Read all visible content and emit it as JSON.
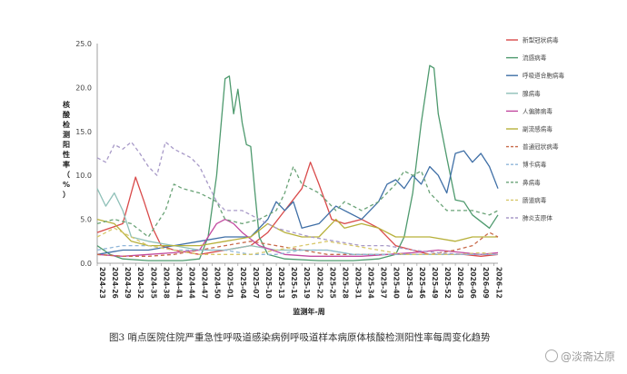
{
  "caption": "图3  哨点医院住院严重急性呼吸道感染病例呼吸道样本病原体核酸检测阳性率每周变化趋势",
  "watermark": "@淡斋达原",
  "chart_data": {
    "type": "line",
    "title": "",
    "xlabel": "监测年-周",
    "ylabel": "核酸检测阳性率（%）",
    "ylim": [
      0,
      25
    ],
    "yticks": [
      "0.0",
      "5.0",
      "10.0",
      "15.0",
      "20.0",
      "25.0"
    ],
    "yticks_num": [
      0,
      5,
      10,
      15,
      20,
      25
    ],
    "x_tick_labels": [
      "2024-23",
      "2024-26",
      "2024-29",
      "2024-32",
      "2024-35",
      "2024-38",
      "2024-41",
      "2024-44",
      "2024-47",
      "2024-50",
      "2025-01",
      "2025-04",
      "2025-07",
      "2025-10",
      "2025-13",
      "2025-16",
      "2025-19",
      "2025-22",
      "2025-25",
      "2025-28",
      "2025-31",
      "2025-34",
      "2025-37",
      "2025-40",
      "2025-43",
      "2025-46",
      "2025-49",
      "2025-52",
      "2026-03",
      "2026-06",
      "2026-09",
      "2026-12"
    ],
    "x_tick_weeks": [
      0,
      3,
      6,
      9,
      12,
      15,
      18,
      21,
      24,
      27,
      30,
      33,
      36,
      39,
      42,
      45,
      48,
      51,
      54,
      57,
      60,
      63,
      66,
      69,
      72,
      75,
      78,
      81,
      84,
      87,
      90,
      93
    ],
    "grid": false,
    "legend_position": "right",
    "series": [
      {
        "name": "新型冠状病毒",
        "color": "#d94a4a",
        "dash": "solid",
        "points": [
          [
            0,
            3.5
          ],
          [
            3,
            4
          ],
          [
            6,
            4.5
          ],
          [
            9,
            9.8
          ],
          [
            11,
            7
          ],
          [
            13,
            4
          ],
          [
            15,
            2
          ],
          [
            18,
            1.5
          ],
          [
            24,
            1
          ],
          [
            30,
            1.5
          ],
          [
            36,
            2
          ],
          [
            40,
            3.5
          ],
          [
            44,
            6
          ],
          [
            48,
            8.5
          ],
          [
            50,
            11.5
          ],
          [
            52,
            9
          ],
          [
            55,
            5
          ],
          [
            58,
            4.5
          ],
          [
            62,
            5
          ],
          [
            66,
            4
          ],
          [
            70,
            2
          ],
          [
            74,
            1.5
          ],
          [
            78,
            1
          ],
          [
            82,
            1
          ],
          [
            86,
            1
          ],
          [
            90,
            0.8
          ],
          [
            94,
            1
          ]
        ]
      },
      {
        "name": "流感病毒",
        "color": "#4e9a6e",
        "dash": "solid",
        "points": [
          [
            0,
            2
          ],
          [
            3,
            1
          ],
          [
            6,
            0.5
          ],
          [
            12,
            0.3
          ],
          [
            20,
            0.3
          ],
          [
            24,
            0.5
          ],
          [
            26,
            3
          ],
          [
            28,
            10
          ],
          [
            30,
            21
          ],
          [
            31,
            21.3
          ],
          [
            32,
            17
          ],
          [
            33,
            19.8
          ],
          [
            34,
            16
          ],
          [
            35,
            13.5
          ],
          [
            36,
            13.3
          ],
          [
            37,
            8
          ],
          [
            38,
            3
          ],
          [
            40,
            1
          ],
          [
            44,
            0.5
          ],
          [
            52,
            0.3
          ],
          [
            60,
            0.3
          ],
          [
            66,
            0.5
          ],
          [
            70,
            1
          ],
          [
            72,
            3
          ],
          [
            74,
            8
          ],
          [
            76,
            16
          ],
          [
            78,
            22.5
          ],
          [
            79,
            22.2
          ],
          [
            80,
            17
          ],
          [
            82,
            12
          ],
          [
            84,
            7.2
          ],
          [
            86,
            7
          ],
          [
            88,
            5.5
          ],
          [
            92,
            4
          ],
          [
            94,
            5.5
          ]
        ]
      },
      {
        "name": "呼吸道合胞病毒",
        "color": "#3f6fa6",
        "dash": "solid",
        "points": [
          [
            0,
            1
          ],
          [
            6,
            1.5
          ],
          [
            12,
            1.5
          ],
          [
            18,
            2
          ],
          [
            24,
            2.5
          ],
          [
            30,
            3
          ],
          [
            36,
            3
          ],
          [
            40,
            5
          ],
          [
            42,
            7
          ],
          [
            44,
            6
          ],
          [
            46,
            7
          ],
          [
            48,
            4
          ],
          [
            52,
            4.5
          ],
          [
            56,
            6.5
          ],
          [
            58,
            6
          ],
          [
            62,
            5
          ],
          [
            66,
            7
          ],
          [
            68,
            9
          ],
          [
            70,
            9.5
          ],
          [
            72,
            8.5
          ],
          [
            74,
            10
          ],
          [
            76,
            9
          ],
          [
            78,
            11
          ],
          [
            80,
            10
          ],
          [
            82,
            8
          ],
          [
            84,
            12.5
          ],
          [
            86,
            12.8
          ],
          [
            88,
            11.5
          ],
          [
            90,
            12.5
          ],
          [
            92,
            11
          ],
          [
            94,
            8.5
          ]
        ]
      },
      {
        "name": "腺病毒",
        "color": "#8fc0b8",
        "dash": "solid",
        "points": [
          [
            0,
            8.5
          ],
          [
            2,
            6.5
          ],
          [
            4,
            8
          ],
          [
            6,
            6
          ],
          [
            8,
            3
          ],
          [
            12,
            2.5
          ],
          [
            18,
            2
          ],
          [
            24,
            1.5
          ],
          [
            30,
            1.5
          ],
          [
            36,
            2
          ],
          [
            42,
            1.5
          ],
          [
            48,
            1.5
          ],
          [
            54,
            1.5
          ],
          [
            60,
            1
          ],
          [
            66,
            1
          ],
          [
            72,
            1
          ],
          [
            78,
            1
          ],
          [
            84,
            1
          ],
          [
            90,
            1
          ],
          [
            94,
            1
          ]
        ]
      },
      {
        "name": "人偏肺病毒",
        "color": "#c24aa0",
        "dash": "solid",
        "points": [
          [
            0,
            1
          ],
          [
            6,
            0.8
          ],
          [
            12,
            1
          ],
          [
            18,
            1.2
          ],
          [
            24,
            1.5
          ],
          [
            26,
            3
          ],
          [
            28,
            4.5
          ],
          [
            30,
            5
          ],
          [
            32,
            4.5
          ],
          [
            34,
            3.5
          ],
          [
            38,
            2
          ],
          [
            44,
            1
          ],
          [
            50,
            0.8
          ],
          [
            56,
            0.8
          ],
          [
            62,
            0.8
          ],
          [
            68,
            1
          ],
          [
            74,
            1.2
          ],
          [
            80,
            1.5
          ],
          [
            86,
            1.2
          ],
          [
            90,
            1
          ],
          [
            94,
            1.2
          ]
        ]
      },
      {
        "name": "副流感病毒",
        "color": "#b7b03a",
        "dash": "solid",
        "points": [
          [
            0,
            5
          ],
          [
            4,
            4.5
          ],
          [
            8,
            2.5
          ],
          [
            12,
            2
          ],
          [
            18,
            2
          ],
          [
            24,
            2
          ],
          [
            30,
            2.5
          ],
          [
            36,
            3
          ],
          [
            40,
            4.5
          ],
          [
            44,
            3.5
          ],
          [
            48,
            3
          ],
          [
            52,
            3
          ],
          [
            56,
            5
          ],
          [
            58,
            4
          ],
          [
            62,
            4.5
          ],
          [
            66,
            4
          ],
          [
            70,
            3
          ],
          [
            74,
            3
          ],
          [
            78,
            3
          ],
          [
            84,
            2.5
          ],
          [
            88,
            3
          ],
          [
            92,
            3
          ],
          [
            94,
            3
          ]
        ]
      },
      {
        "name": "普通冠状病毒",
        "color": "#c86a4a",
        "dash": "dashed",
        "points": [
          [
            0,
            1
          ],
          [
            6,
            0.8
          ],
          [
            12,
            0.8
          ],
          [
            18,
            1
          ],
          [
            24,
            1.5
          ],
          [
            30,
            2
          ],
          [
            36,
            2.5
          ],
          [
            42,
            2
          ],
          [
            48,
            1.5
          ],
          [
            54,
            1
          ],
          [
            60,
            1
          ],
          [
            66,
            1
          ],
          [
            72,
            1
          ],
          [
            78,
            1
          ],
          [
            84,
            1.5
          ],
          [
            88,
            2
          ],
          [
            92,
            3.5
          ],
          [
            94,
            3
          ]
        ]
      },
      {
        "name": "博卡病毒",
        "color": "#8fb6d9",
        "dash": "dashed",
        "points": [
          [
            0,
            1.5
          ],
          [
            6,
            2
          ],
          [
            12,
            2
          ],
          [
            18,
            1.5
          ],
          [
            24,
            1.5
          ],
          [
            30,
            1.5
          ],
          [
            36,
            1
          ],
          [
            42,
            1
          ],
          [
            48,
            1.5
          ],
          [
            54,
            1.5
          ],
          [
            60,
            1
          ],
          [
            66,
            1
          ],
          [
            72,
            1
          ],
          [
            78,
            1
          ],
          [
            84,
            1
          ],
          [
            90,
            1
          ],
          [
            94,
            1
          ]
        ]
      },
      {
        "name": "鼻病毒",
        "color": "#6aa377",
        "dash": "dashed",
        "points": [
          [
            0,
            4.5
          ],
          [
            4,
            5
          ],
          [
            8,
            4.5
          ],
          [
            12,
            3
          ],
          [
            16,
            6
          ],
          [
            18,
            9
          ],
          [
            20,
            8.5
          ],
          [
            24,
            8
          ],
          [
            28,
            7
          ],
          [
            30,
            5
          ],
          [
            34,
            4.5
          ],
          [
            38,
            5
          ],
          [
            42,
            6
          ],
          [
            44,
            8
          ],
          [
            46,
            11
          ],
          [
            48,
            9
          ],
          [
            52,
            8
          ],
          [
            56,
            6
          ],
          [
            58,
            7
          ],
          [
            62,
            6
          ],
          [
            66,
            7
          ],
          [
            70,
            9
          ],
          [
            72,
            10.5
          ],
          [
            74,
            10
          ],
          [
            76,
            10.5
          ],
          [
            78,
            8
          ],
          [
            80,
            7
          ],
          [
            82,
            6
          ],
          [
            84,
            6
          ],
          [
            86,
            6
          ],
          [
            88,
            6
          ],
          [
            92,
            5.5
          ],
          [
            94,
            6
          ]
        ]
      },
      {
        "name": "肠道病毒",
        "color": "#d8c86a",
        "dash": "dashed",
        "points": [
          [
            0,
            3
          ],
          [
            4,
            4
          ],
          [
            8,
            3
          ],
          [
            12,
            2
          ],
          [
            18,
            1.5
          ],
          [
            24,
            1
          ],
          [
            30,
            1
          ],
          [
            36,
            1
          ],
          [
            42,
            1.5
          ],
          [
            48,
            2
          ],
          [
            54,
            2.5
          ],
          [
            60,
            2
          ],
          [
            66,
            1.5
          ],
          [
            72,
            1
          ],
          [
            78,
            1
          ],
          [
            84,
            1
          ],
          [
            90,
            1.2
          ],
          [
            94,
            1
          ]
        ]
      },
      {
        "name": "肺炎支原体",
        "color": "#a89ac8",
        "dash": "dashed",
        "points": [
          [
            0,
            12
          ],
          [
            2,
            11.5
          ],
          [
            4,
            13.5
          ],
          [
            6,
            13
          ],
          [
            8,
            13.8
          ],
          [
            10,
            12.5
          ],
          [
            12,
            11
          ],
          [
            14,
            10
          ],
          [
            16,
            13.8
          ],
          [
            18,
            13
          ],
          [
            20,
            12.5
          ],
          [
            22,
            12
          ],
          [
            24,
            11
          ],
          [
            26,
            9
          ],
          [
            28,
            7
          ],
          [
            30,
            6
          ],
          [
            34,
            6
          ],
          [
            38,
            5
          ],
          [
            42,
            4
          ],
          [
            46,
            3.5
          ],
          [
            50,
            3
          ],
          [
            56,
            2.5
          ],
          [
            62,
            2
          ],
          [
            68,
            2
          ],
          [
            74,
            1.5
          ],
          [
            80,
            1.2
          ],
          [
            86,
            1
          ],
          [
            94,
            1
          ]
        ]
      }
    ]
  }
}
